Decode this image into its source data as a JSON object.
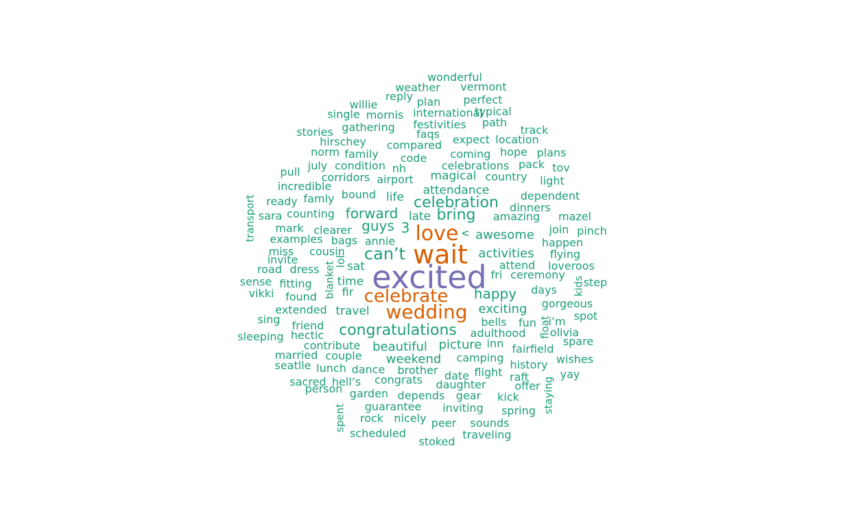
{
  "colors": {
    "green": "#1b9e77",
    "orange": "#d95f02",
    "purple": "#7570b3"
  },
  "words": [
    {
      "text": "excited",
      "color": "purple",
      "rot": 0
    },
    {
      "text": "wait",
      "color": "orange",
      "rot": 0
    },
    {
      "text": "love",
      "color": "orange",
      "rot": 0
    },
    {
      "text": "wedding",
      "color": "orange",
      "rot": 0
    },
    {
      "text": "celebrate",
      "color": "orange",
      "rot": 0
    },
    {
      "text": "can’t",
      "color": "green",
      "rot": 0
    },
    {
      "text": "congratulations",
      "color": "green",
      "rot": 0
    },
    {
      "text": "celebration",
      "color": "green",
      "rot": 0
    },
    {
      "text": "bring",
      "color": "green",
      "rot": 0
    },
    {
      "text": "happy",
      "color": "green",
      "rot": 0
    },
    {
      "text": "forward",
      "color": "green",
      "rot": 0
    },
    {
      "text": "guys",
      "color": "green",
      "rot": 0
    },
    {
      "text": "3",
      "color": "green",
      "rot": 0
    },
    {
      "text": "awesome",
      "color": "green",
      "rot": 0
    },
    {
      "text": "activities",
      "color": "green",
      "rot": 0
    },
    {
      "text": "exciting",
      "color": "green",
      "rot": 0
    },
    {
      "text": "beautiful",
      "color": "green",
      "rot": 0
    },
    {
      "text": "picture",
      "color": "green",
      "rot": 0
    },
    {
      "text": "weekend",
      "color": "green",
      "rot": 0
    },
    {
      "text": "time",
      "color": "green",
      "rot": 0
    },
    {
      "text": "travel",
      "color": "green",
      "rot": 0
    },
    {
      "text": "attendance",
      "color": "green",
      "rot": 0
    },
    {
      "text": "magical",
      "color": "green",
      "rot": 0
    },
    {
      "text": "late",
      "color": "green",
      "rot": 0
    },
    {
      "text": "life",
      "color": "green",
      "rot": 0
    },
    {
      "text": "sat",
      "color": "green",
      "rot": 0
    },
    {
      "text": "wonderful",
      "color": "green",
      "rot": 0
    },
    {
      "text": "weather",
      "color": "green",
      "rot": 0
    },
    {
      "text": "vermont",
      "color": "green",
      "rot": 0
    },
    {
      "text": "reply",
      "color": "green",
      "rot": 0
    },
    {
      "text": "willie",
      "color": "green",
      "rot": 0
    },
    {
      "text": "plan",
      "color": "green",
      "rot": 0
    },
    {
      "text": "perfect",
      "color": "green",
      "rot": 0
    },
    {
      "text": "single",
      "color": "green",
      "rot": 0
    },
    {
      "text": "mornis",
      "color": "green",
      "rot": 0
    },
    {
      "text": "international",
      "color": "green",
      "rot": 0
    },
    {
      "text": "typical",
      "color": "green",
      "rot": 0
    },
    {
      "text": "stories",
      "color": "green",
      "rot": 0
    },
    {
      "text": "gathering",
      "color": "green",
      "rot": 0
    },
    {
      "text": "festivities",
      "color": "green",
      "rot": 0
    },
    {
      "text": "path",
      "color": "green",
      "rot": 0
    },
    {
      "text": "track",
      "color": "green",
      "rot": 0
    },
    {
      "text": "hirschey",
      "color": "green",
      "rot": 0
    },
    {
      "text": "faqs",
      "color": "green",
      "rot": 0
    },
    {
      "text": "expect",
      "color": "green",
      "rot": 0
    },
    {
      "text": "location",
      "color": "green",
      "rot": 0
    },
    {
      "text": "compared",
      "color": "green",
      "rot": 0
    },
    {
      "text": "norm",
      "color": "green",
      "rot": 0
    },
    {
      "text": "family",
      "color": "green",
      "rot": 0
    },
    {
      "text": "coming",
      "color": "green",
      "rot": 0
    },
    {
      "text": "hope",
      "color": "green",
      "rot": 0
    },
    {
      "text": "plans",
      "color": "green",
      "rot": 0
    },
    {
      "text": "code",
      "color": "green",
      "rot": 0
    },
    {
      "text": "july",
      "color": "green",
      "rot": 0
    },
    {
      "text": "condition",
      "color": "green",
      "rot": 0
    },
    {
      "text": "nh",
      "color": "green",
      "rot": 0
    },
    {
      "text": "celebrations",
      "color": "green",
      "rot": 0
    },
    {
      "text": "pack",
      "color": "green",
      "rot": 0
    },
    {
      "text": "tov",
      "color": "green",
      "rot": 0
    },
    {
      "text": "pull",
      "color": "green",
      "rot": 0
    },
    {
      "text": "corridors",
      "color": "green",
      "rot": 0
    },
    {
      "text": "airport",
      "color": "green",
      "rot": 0
    },
    {
      "text": "country",
      "color": "green",
      "rot": 0
    },
    {
      "text": "light",
      "color": "green",
      "rot": 0
    },
    {
      "text": "incredible",
      "color": "green",
      "rot": 0
    },
    {
      "text": "bound",
      "color": "green",
      "rot": 0
    },
    {
      "text": "famly",
      "color": "green",
      "rot": 0
    },
    {
      "text": "dependent",
      "color": "green",
      "rot": 0
    },
    {
      "text": "ready",
      "color": "green",
      "rot": 0
    },
    {
      "text": "dinners",
      "color": "green",
      "rot": 0
    },
    {
      "text": "sara",
      "color": "green",
      "rot": 0
    },
    {
      "text": "counting",
      "color": "green",
      "rot": 0
    },
    {
      "text": "amazing",
      "color": "green",
      "rot": 0
    },
    {
      "text": "mazel",
      "color": "green",
      "rot": 0
    },
    {
      "text": "transport",
      "color": "green",
      "rot": -90
    },
    {
      "text": "mark",
      "color": "green",
      "rot": 0
    },
    {
      "text": "clearer",
      "color": "green",
      "rot": 0
    },
    {
      "text": "join",
      "color": "green",
      "rot": 0
    },
    {
      "text": "pinch",
      "color": "green",
      "rot": 0
    },
    {
      "text": "examples",
      "color": "green",
      "rot": 0
    },
    {
      "text": "bags",
      "color": "green",
      "rot": 0
    },
    {
      "text": "annie",
      "color": "green",
      "rot": 0
    },
    {
      "text": "happen",
      "color": "green",
      "rot": 0
    },
    {
      "text": "v",
      "color": "green",
      "rot": 90
    },
    {
      "text": "miss",
      "color": "green",
      "rot": 0
    },
    {
      "text": "cousin",
      "color": "green",
      "rot": 0
    },
    {
      "text": "flying",
      "color": "green",
      "rot": 0
    },
    {
      "text": "invite",
      "color": "green",
      "rot": 0
    },
    {
      "text": "lol",
      "color": "green",
      "rot": -90
    },
    {
      "text": "attend",
      "color": "green",
      "rot": 0
    },
    {
      "text": "loveroos",
      "color": "green",
      "rot": 0
    },
    {
      "text": "road",
      "color": "green",
      "rot": 0
    },
    {
      "text": "dress",
      "color": "green",
      "rot": 0
    },
    {
      "text": "fri",
      "color": "green",
      "rot": 0
    },
    {
      "text": "ceremony",
      "color": "green",
      "rot": 0
    },
    {
      "text": "sense",
      "color": "green",
      "rot": 0
    },
    {
      "text": "fitting",
      "color": "green",
      "rot": 0
    },
    {
      "text": "step",
      "color": "green",
      "rot": 0
    },
    {
      "text": "kids",
      "color": "green",
      "rot": -90
    },
    {
      "text": "blanket",
      "color": "green",
      "rot": -90
    },
    {
      "text": "vikki",
      "color": "green",
      "rot": 0
    },
    {
      "text": "found",
      "color": "green",
      "rot": 0
    },
    {
      "text": "fir",
      "color": "green",
      "rot": 0
    },
    {
      "text": "days",
      "color": "green",
      "rot": 0
    },
    {
      "text": "gorgeous",
      "color": "green",
      "rot": 0
    },
    {
      "text": "extended",
      "color": "green",
      "rot": 0
    },
    {
      "text": "sing",
      "color": "green",
      "rot": 0
    },
    {
      "text": "spot",
      "color": "green",
      "rot": 0
    },
    {
      "text": "bells",
      "color": "green",
      "rot": 0
    },
    {
      "text": "fun",
      "color": "green",
      "rot": 0
    },
    {
      "text": "i’m",
      "color": "green",
      "rot": 0
    },
    {
      "text": "float",
      "color": "green",
      "rot": -90
    },
    {
      "text": "friend",
      "color": "green",
      "rot": 0
    },
    {
      "text": "olivia",
      "color": "green",
      "rot": 0
    },
    {
      "text": "sleeping",
      "color": "green",
      "rot": 0
    },
    {
      "text": "hectic",
      "color": "green",
      "rot": 0
    },
    {
      "text": "adulthood",
      "color": "green",
      "rot": 0
    },
    {
      "text": "spare",
      "color": "green",
      "rot": 0
    },
    {
      "text": "contribute",
      "color": "green",
      "rot": 0
    },
    {
      "text": "inn",
      "color": "green",
      "rot": 0
    },
    {
      "text": "fairfield",
      "color": "green",
      "rot": 0
    },
    {
      "text": "married",
      "color": "green",
      "rot": 0
    },
    {
      "text": "couple",
      "color": "green",
      "rot": 0
    },
    {
      "text": "camping",
      "color": "green",
      "rot": 0
    },
    {
      "text": "wishes",
      "color": "green",
      "rot": 0
    },
    {
      "text": "seatlle",
      "color": "green",
      "rot": 0
    },
    {
      "text": "lunch",
      "color": "green",
      "rot": 0
    },
    {
      "text": "history",
      "color": "green",
      "rot": 0
    },
    {
      "text": "dance",
      "color": "green",
      "rot": 0
    },
    {
      "text": "brother",
      "color": "green",
      "rot": 0
    },
    {
      "text": "flight",
      "color": "green",
      "rot": 0
    },
    {
      "text": "date",
      "color": "green",
      "rot": 0
    },
    {
      "text": "raft",
      "color": "green",
      "rot": 0
    },
    {
      "text": "yay",
      "color": "green",
      "rot": 0
    },
    {
      "text": "sacred",
      "color": "green",
      "rot": 0
    },
    {
      "text": "hell’s",
      "color": "green",
      "rot": 0
    },
    {
      "text": "congrats",
      "color": "green",
      "rot": 0
    },
    {
      "text": "daughter",
      "color": "green",
      "rot": 0
    },
    {
      "text": "offer",
      "color": "green",
      "rot": 0
    },
    {
      "text": "staying",
      "color": "green",
      "rot": -90
    },
    {
      "text": "person",
      "color": "green",
      "rot": 0
    },
    {
      "text": "garden",
      "color": "green",
      "rot": 0
    },
    {
      "text": "depends",
      "color": "green",
      "rot": 0
    },
    {
      "text": "gear",
      "color": "green",
      "rot": 0
    },
    {
      "text": "kick",
      "color": "green",
      "rot": 0
    },
    {
      "text": "spent",
      "color": "green",
      "rot": -90
    },
    {
      "text": "guarantee",
      "color": "green",
      "rot": 0
    },
    {
      "text": "inviting",
      "color": "green",
      "rot": 0
    },
    {
      "text": "spring",
      "color": "green",
      "rot": 0
    },
    {
      "text": "rock",
      "color": "green",
      "rot": 0
    },
    {
      "text": "nicely",
      "color": "green",
      "rot": 0
    },
    {
      "text": "peer",
      "color": "green",
      "rot": 0
    },
    {
      "text": "sounds",
      "color": "green",
      "rot": 0
    },
    {
      "text": "scheduled",
      "color": "green",
      "rot": 0
    },
    {
      "text": "traveling",
      "color": "green",
      "rot": 0
    },
    {
      "text": "stoked",
      "color": "green",
      "rot": 0
    }
  ]
}
